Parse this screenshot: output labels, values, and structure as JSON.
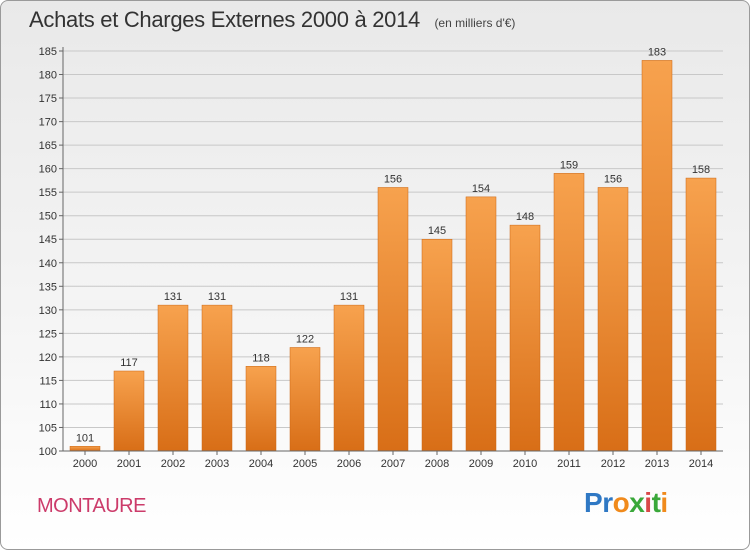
{
  "title": "Achats et Charges Externes 2000 à 2014",
  "unit_note": "(en milliers d'€)",
  "commune": "MONTAURE",
  "logo": {
    "letters": [
      "P",
      "r",
      "o",
      "x",
      "i",
      "t",
      "i"
    ],
    "colors": [
      "#2f78c4",
      "#2f78c4",
      "#f08a1c",
      "#3aa83a",
      "#d94848",
      "#3aa83a",
      "#f08a1c"
    ]
  },
  "colors": {
    "bar_top": "#f7a24e",
    "bar_bottom": "#d86e17",
    "grid": "#c8c8c8",
    "accent": "#cc3b6a"
  },
  "chart_data": {
    "type": "bar",
    "categories": [
      "2000",
      "2001",
      "2002",
      "2003",
      "2004",
      "2005",
      "2006",
      "2007",
      "2008",
      "2009",
      "2010",
      "2011",
      "2012",
      "2013",
      "2014"
    ],
    "values": [
      101,
      117,
      131,
      131,
      118,
      122,
      131,
      156,
      145,
      154,
      148,
      159,
      156,
      183,
      158
    ],
    "ylim": [
      100,
      185
    ],
    "yticks": [
      100,
      105,
      110,
      115,
      120,
      125,
      130,
      135,
      140,
      145,
      150,
      155,
      160,
      165,
      170,
      175,
      180,
      185
    ],
    "grid": true,
    "data_labels": true
  }
}
